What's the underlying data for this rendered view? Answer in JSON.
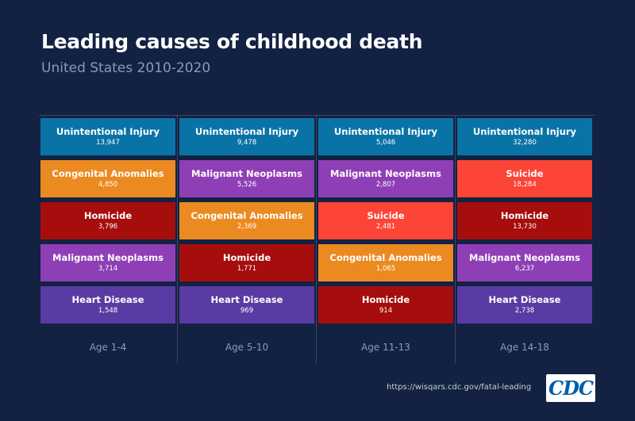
{
  "title": "Leading causes of childhood death",
  "subtitle": "United States 2010-2020",
  "source_url": "https://wisqars.cdc.gov/fatal-leading",
  "logo_text": "CDC",
  "colors": {
    "background": "#132242",
    "Unintentional Injury": "#0a73a6",
    "Congenital Anomalies": "#ec8a22",
    "Homicide": "#a60d0d",
    "Malignant Neoplasms": "#8f3fb6",
    "Heart Disease": "#5a3ba3",
    "Suicide": "#fc4437"
  },
  "chart_data": {
    "type": "table",
    "title": "Leading causes of childhood death",
    "subtitle": "United States 2010-2020",
    "categories": [
      "Age 1-4",
      "Age 5-10",
      "Age 11-13",
      "Age 14-18"
    ],
    "columns": [
      {
        "age": "Age 1-4",
        "causes": [
          {
            "cause": "Unintentional Injury",
            "count": "13,947",
            "value": 13947
          },
          {
            "cause": "Congenital Anomalies",
            "count": "4,850",
            "value": 4850
          },
          {
            "cause": "Homicide",
            "count": "3,796",
            "value": 3796
          },
          {
            "cause": "Malignant Neoplasms",
            "count": "3,714",
            "value": 3714
          },
          {
            "cause": "Heart Disease",
            "count": "1,548",
            "value": 1548
          }
        ]
      },
      {
        "age": "Age 5-10",
        "causes": [
          {
            "cause": "Unintentional Injury",
            "count": "9,478",
            "value": 9478
          },
          {
            "cause": "Malignant Neoplasms",
            "count": "5,526",
            "value": 5526
          },
          {
            "cause": "Congenital Anomalies",
            "count": "2,369",
            "value": 2369
          },
          {
            "cause": "Homicide",
            "count": "1,771",
            "value": 1771
          },
          {
            "cause": "Heart Disease",
            "count": "969",
            "value": 969
          }
        ]
      },
      {
        "age": "Age 11-13",
        "causes": [
          {
            "cause": "Unintentional Injury",
            "count": "5,046",
            "value": 5046
          },
          {
            "cause": "Malignant Neoplasms",
            "count": "2,807",
            "value": 2807
          },
          {
            "cause": "Suicide",
            "count": "2,481",
            "value": 2481
          },
          {
            "cause": "Congenital Anomalies",
            "count": "1,065",
            "value": 1065
          },
          {
            "cause": "Homicide",
            "count": "914",
            "value": 914
          }
        ]
      },
      {
        "age": "Age 14-18",
        "causes": [
          {
            "cause": "Unintentional Injury",
            "count": "32,280",
            "value": 32280
          },
          {
            "cause": "Suicide",
            "count": "18,284",
            "value": 18284
          },
          {
            "cause": "Homicide",
            "count": "13,730",
            "value": 13730
          },
          {
            "cause": "Malignant Neoplasms",
            "count": "6,237",
            "value": 6237
          },
          {
            "cause": "Heart Disease",
            "count": "2,738",
            "value": 2738
          }
        ]
      }
    ]
  }
}
